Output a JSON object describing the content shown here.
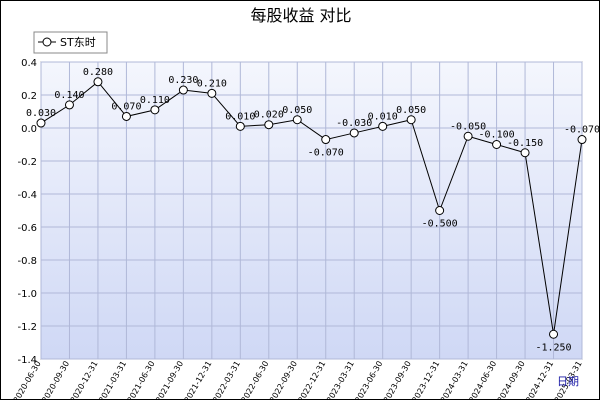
{
  "chart_data": {
    "type": "line",
    "title": "每股收益  对比",
    "xlabel": "日期",
    "ylim": [
      -1.4,
      0.4
    ],
    "yticks": [
      "0.4",
      "0.2",
      "0.0",
      "-0.2",
      "-0.4",
      "-0.6",
      "-0.8",
      "-1.0",
      "-1.2",
      "-1.4"
    ],
    "x": [
      "2020-06-30",
      "2020-09-30",
      "2020-12-31",
      "2021-03-31",
      "2021-06-30",
      "2021-09-30",
      "2021-12-31",
      "2022-03-31",
      "2022-06-30",
      "2022-09-30",
      "2022-12-31",
      "2023-03-31",
      "2023-06-30",
      "2023-09-30",
      "2023-12-31",
      "2024-03-31",
      "2024-06-30",
      "2024-09-30",
      "2024-12-31",
      "2025-03-31"
    ],
    "series": [
      {
        "name": "ST东时",
        "values": [
          0.03,
          0.14,
          0.28,
          0.07,
          0.11,
          0.23,
          0.21,
          0.01,
          0.02,
          0.05,
          -0.07,
          -0.03,
          0.01,
          0.05,
          -0.5,
          -0.05,
          -0.1,
          -0.15,
          -1.25,
          -0.07
        ],
        "labels": [
          "0.030",
          "0.140",
          "0.280",
          "0.070",
          "0.110",
          "0.230",
          "0.210",
          "0.010",
          "0.020",
          "0.050",
          "-0.070",
          "-0.030",
          "0.010",
          "0.050",
          "-0.500",
          "-0.050",
          "-0.100",
          "-0.150",
          "-1.250",
          "-0.070"
        ]
      }
    ],
    "grid": true,
    "legend": "top-left",
    "colors": {
      "plot_bg_top": "#f4f6fd",
      "plot_bg_bottom": "#cfd8f5",
      "grid": "#b0b8d8",
      "line": "#000000",
      "xlabel": "#1a1aa6"
    }
  }
}
